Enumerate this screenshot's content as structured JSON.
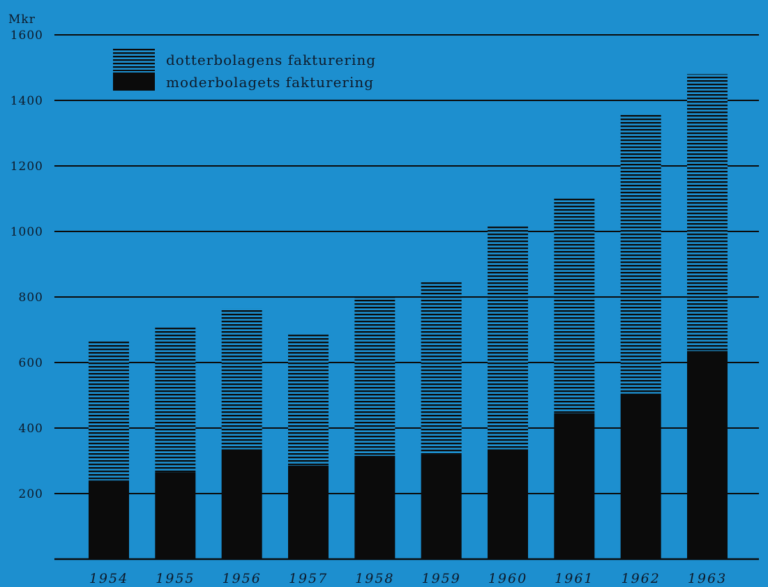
{
  "chart_data": {
    "type": "bar",
    "stacked": true,
    "ylabel": "Mkr",
    "ylim": [
      0,
      1600
    ],
    "yticks": [
      200,
      400,
      600,
      800,
      1000,
      1200,
      1400,
      1600
    ],
    "grid": true,
    "legend_position": "top-left",
    "categories": [
      "1954",
      "1955",
      "1956",
      "1957",
      "1958",
      "1959",
      "1960",
      "1961",
      "1962",
      "1963"
    ],
    "series": [
      {
        "name": "moderbolagets fakturering",
        "pattern": "solid",
        "color": "#0b0b0b",
        "values": [
          240,
          265,
          335,
          285,
          315,
          320,
          335,
          445,
          505,
          635
        ]
      },
      {
        "name": "dotterbolagens fakturering",
        "pattern": "horizontal-hatch",
        "color": "#0b0b0b",
        "values": [
          425,
          445,
          430,
          400,
          485,
          530,
          680,
          660,
          855,
          845
        ]
      }
    ]
  },
  "colors": {
    "background": "#1d8fcf",
    "ink": "#0b0b0b"
  }
}
